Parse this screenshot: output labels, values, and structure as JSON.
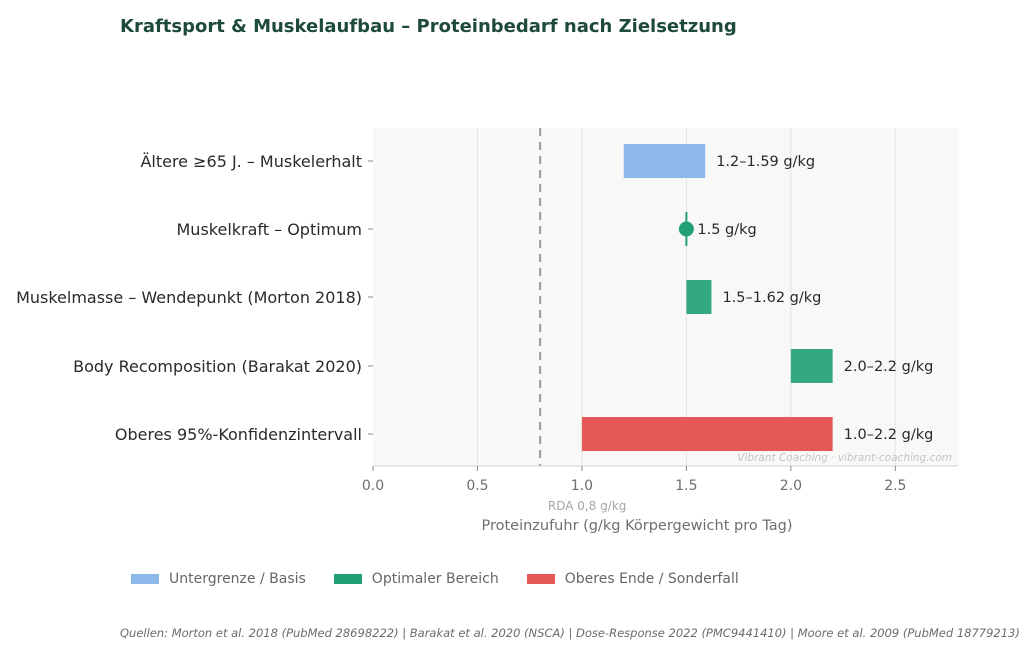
{
  "title": "Kraftsport & Muskelaufbau – Proteinbedarf nach Zielsetzung",
  "chart_data": {
    "type": "bar",
    "orientation": "horizontal-range",
    "categories": [
      "Ältere ≥65 J. – Muskelerhalt",
      "Muskelkraft – Optimum",
      "Muskelmasse – Wendepunkt (Morton 2018)",
      "Body Recomposition (Barakat 2020)",
      "Oberes 95%-Konfidenzintervall"
    ],
    "ranges": [
      {
        "category": "Ältere ≥65 J. – Muskelerhalt",
        "start": 1.2,
        "end": 1.59,
        "label": "1.2–1.59 g/kg",
        "group": "Untergrenze / Basis",
        "marker": "bar"
      },
      {
        "category": "Muskelkraft – Optimum",
        "start": 1.5,
        "end": 1.5,
        "label": "1.5 g/kg",
        "group": "Optimaler Bereich",
        "marker": "point"
      },
      {
        "category": "Muskelmasse – Wendepunkt (Morton 2018)",
        "start": 1.5,
        "end": 1.62,
        "label": "1.5–1.62 g/kg",
        "group": "Optimaler Bereich",
        "marker": "bar"
      },
      {
        "category": "Body Recomposition (Barakat 2020)",
        "start": 2.0,
        "end": 2.2,
        "label": "2.0–2.2 g/kg",
        "group": "Optimaler Bereich",
        "marker": "bar"
      },
      {
        "category": "Oberes 95%-Konfidenzintervall",
        "start": 1.0,
        "end": 2.2,
        "label": "1.0–2.2 g/kg",
        "group": "Oberes Ende / Sonderfall",
        "marker": "bar"
      }
    ],
    "xlabel": "Proteinzufuhr (g/kg Körpergewicht pro Tag)",
    "xlim": [
      0,
      2.8
    ],
    "xticks": [
      0.0,
      0.5,
      1.0,
      1.5,
      2.0,
      2.5
    ],
    "xtick_labels": [
      "0.0",
      "0.5",
      "1.0",
      "1.5",
      "2.0",
      "2.5"
    ],
    "reference_line": {
      "value": 0.8,
      "label": "RDA 0,8 g/kg",
      "style": "dashed"
    },
    "grid": "vertical",
    "watermark": "Vibrant Coaching · vibrant-coaching.com",
    "legend": {
      "placement": "bottom",
      "entries": [
        {
          "name": "Untergrenze / Basis",
          "color": "#8db9ea"
        },
        {
          "name": "Optimaler Bereich",
          "color": "#22a075"
        },
        {
          "name": "Oberes Ende / Sonderfall",
          "color": "#e45858"
        }
      ]
    }
  },
  "colors": {
    "basis": "#8db9ea",
    "optimal": "#22a075",
    "optimal_bar": "#33a882",
    "upper": "#e45858",
    "title": "#1e4a3a",
    "plot_bg": "#f8f8f6",
    "grid": "#e3e3e0",
    "rda_line": "#9b9b9b"
  },
  "sources": "Quellen: Morton et al. 2018 (PubMed 28698222) | Barakat et al. 2020 (NSCA) | Dose-Response 2022 (PMC9441410) | Moore et al. 2009 (PubMed 18779213)"
}
